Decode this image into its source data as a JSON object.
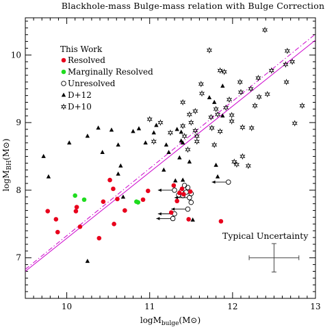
{
  "chart_data": {
    "type": "scatter",
    "title": "Blackhole-mass Bulge-mass relation with Bulge Correction",
    "xlabel": {
      "base": "logM",
      "sub": "bulge",
      "rest": "(M",
      "sun": "⊙",
      "close": ")"
    },
    "ylabel": {
      "base": "logM",
      "sub": "BH",
      "rest": "(M",
      "sun": "⊙",
      "close": ")"
    },
    "xlim": [
      9.5,
      13
    ],
    "ylim": [
      6.4,
      10.55
    ],
    "xticks": [
      10,
      11,
      12,
      13
    ],
    "yticks": [
      7,
      8,
      9,
      10
    ],
    "grid": false,
    "legend_position": "top-left",
    "legend_title": "This Work",
    "legend": [
      {
        "name": "Resolved",
        "marker": "filled-circle",
        "color": "#e8001c"
      },
      {
        "name": "Marginally Resolved",
        "marker": "filled-circle",
        "color": "#1fdc1f"
      },
      {
        "name": "Unresolved",
        "marker": "open-circle",
        "color": "#000000"
      },
      {
        "name": "D+12",
        "marker": "filled-triangle",
        "color": "#000000"
      },
      {
        "name": "D+10",
        "marker": "open-star",
        "color": "#000000"
      }
    ],
    "series": [
      {
        "name": "Resolved",
        "points": [
          [
            9.77,
            7.69
          ],
          [
            9.87,
            7.57
          ],
          [
            9.89,
            7.38
          ],
          [
            10.11,
            7.69
          ],
          [
            10.12,
            7.75
          ],
          [
            10.16,
            7.46
          ],
          [
            10.39,
            7.29
          ],
          [
            10.44,
            7.83
          ],
          [
            10.52,
            8.15
          ],
          [
            10.56,
            8.02
          ],
          [
            10.57,
            7.5
          ],
          [
            10.61,
            7.87
          ],
          [
            10.7,
            7.7
          ],
          [
            10.92,
            7.86
          ],
          [
            10.98,
            7.99
          ],
          [
            11.26,
            7.67
          ],
          [
            11.29,
            8.07
          ],
          [
            11.33,
            7.84
          ],
          [
            11.36,
            7.96
          ],
          [
            11.39,
            8.02
          ],
          [
            11.41,
            7.94
          ],
          [
            11.47,
            7.57
          ],
          [
            11.49,
            7.98
          ],
          [
            11.86,
            7.54
          ]
        ]
      },
      {
        "name": "Marginally Resolved",
        "points": [
          [
            10.1,
            7.92
          ],
          [
            10.21,
            7.86
          ],
          [
            10.84,
            7.83
          ],
          [
            10.86,
            7.82
          ]
        ]
      },
      {
        "name": "Unresolved",
        "points": [
          [
            11.28,
            7.58
          ],
          [
            11.3,
            7.65
          ],
          [
            11.3,
            8.0
          ],
          [
            11.35,
            7.93
          ],
          [
            11.38,
            7.98
          ],
          [
            11.4,
            7.92
          ],
          [
            11.42,
            8.07
          ],
          [
            11.44,
            7.97
          ],
          [
            11.46,
            8.04
          ],
          [
            11.46,
            7.72
          ],
          [
            11.48,
            7.89
          ],
          [
            11.5,
            7.95
          ],
          [
            11.5,
            7.82
          ],
          [
            11.95,
            8.12
          ]
        ]
      },
      {
        "name": "D+12",
        "points": [
          [
            9.72,
            8.5
          ],
          [
            9.78,
            8.2
          ],
          [
            10.03,
            8.7
          ],
          [
            10.25,
            8.8
          ],
          [
            10.25,
            6.95
          ],
          [
            10.38,
            8.92
          ],
          [
            10.43,
            8.56
          ],
          [
            10.54,
            8.89
          ],
          [
            10.62,
            8.67
          ],
          [
            10.62,
            8.24
          ],
          [
            10.65,
            8.36
          ],
          [
            10.68,
            7.9
          ],
          [
            10.8,
            8.87
          ],
          [
            10.87,
            8.91
          ],
          [
            10.95,
            8.7
          ],
          [
            11.05,
            8.85
          ],
          [
            11.08,
            8.96
          ],
          [
            11.17,
            8.3
          ],
          [
            11.2,
            8.67
          ],
          [
            11.23,
            8.56
          ],
          [
            11.31,
            8.14
          ],
          [
            11.33,
            8.9
          ],
          [
            11.36,
            8.48
          ],
          [
            11.38,
            8.73
          ],
          [
            11.38,
            8.86
          ],
          [
            11.4,
            8.7
          ],
          [
            11.4,
            8.15
          ],
          [
            11.48,
            8.42
          ],
          [
            11.52,
            7.56
          ],
          [
            11.72,
            9.37
          ],
          [
            11.78,
            9.3
          ],
          [
            11.8,
            8.37
          ],
          [
            11.82,
            8.2
          ],
          [
            11.88,
            9.54
          ],
          [
            11.88,
            9.1
          ]
        ]
      },
      {
        "name": "D+10",
        "points": [
          [
            11.0,
            9.05
          ],
          [
            11.05,
            8.72
          ],
          [
            11.13,
            9.0
          ],
          [
            11.25,
            8.85
          ],
          [
            11.4,
            9.3
          ],
          [
            11.4,
            8.95
          ],
          [
            11.42,
            8.8
          ],
          [
            11.46,
            8.6
          ],
          [
            11.48,
            9.12
          ],
          [
            11.5,
            9.0
          ],
          [
            11.55,
            9.17
          ],
          [
            11.55,
            8.88
          ],
          [
            11.57,
            8.8
          ],
          [
            11.57,
            8.72
          ],
          [
            11.62,
            9.57
          ],
          [
            11.63,
            9.43
          ],
          [
            11.72,
            10.07
          ],
          [
            11.74,
            9.08
          ],
          [
            11.75,
            8.92
          ],
          [
            11.78,
            8.67
          ],
          [
            11.8,
            9.2
          ],
          [
            11.82,
            9.12
          ],
          [
            11.85,
            9.77
          ],
          [
            11.85,
            8.87
          ],
          [
            11.9,
            9.75
          ],
          [
            11.92,
            9.22
          ],
          [
            11.96,
            9.34
          ],
          [
            11.99,
            9.11
          ],
          [
            11.99,
            9.02
          ],
          [
            12.02,
            8.42
          ],
          [
            12.05,
            8.38
          ],
          [
            12.09,
            9.6
          ],
          [
            12.1,
            9.45
          ],
          [
            12.12,
            8.5
          ],
          [
            12.12,
            8.93
          ],
          [
            12.19,
            8.36
          ],
          [
            12.22,
            9.5
          ],
          [
            12.23,
            8.92
          ],
          [
            12.27,
            9.25
          ],
          [
            12.31,
            9.66
          ],
          [
            12.32,
            9.38
          ],
          [
            12.39,
            10.37
          ],
          [
            12.42,
            9.42
          ],
          [
            12.47,
            9.77
          ],
          [
            12.64,
            9.86
          ],
          [
            12.65,
            9.6
          ],
          [
            12.66,
            10.06
          ],
          [
            12.72,
            9.9
          ],
          [
            12.75,
            8.99
          ],
          [
            12.84,
            9.25
          ]
        ]
      }
    ],
    "arrows": [
      {
        "x": 11.3,
        "y": 8.0,
        "to_x": 11.1
      },
      {
        "x": 11.28,
        "y": 7.58,
        "to_x": 11.08
      },
      {
        "x": 11.3,
        "y": 7.65,
        "to_x": 11.1
      },
      {
        "x": 11.46,
        "y": 7.72,
        "to_x": 11.26
      },
      {
        "x": 11.95,
        "y": 8.12,
        "to_x": 11.75
      },
      {
        "x": 11.48,
        "y": 7.89,
        "to_x": 11.3
      }
    ],
    "fit_lines": [
      {
        "style": "solid",
        "color": "#cc00cc",
        "p1": [
          9.5,
          6.8
        ],
        "p2": [
          13,
          10.22
        ]
      },
      {
        "style": "dashdot",
        "color": "#cc00cc",
        "p1": [
          9.5,
          6.83
        ],
        "p2": [
          13,
          10.31
        ]
      }
    ],
    "uncertainty": {
      "label": "Typical Uncertainty",
      "x": 12.5,
      "y": 7.0,
      "xerr": 0.3,
      "yerr": 0.21
    }
  }
}
